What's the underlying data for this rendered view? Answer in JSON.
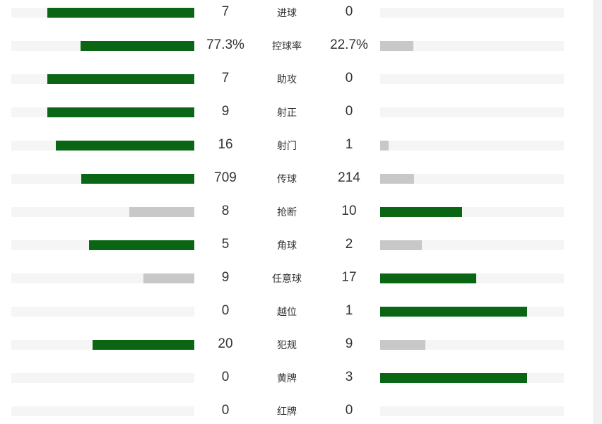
{
  "colors": {
    "leading": "#0a6614",
    "trailing": "#c8c8c8",
    "track": "#f5f5f5"
  },
  "stats": [
    {
      "label": "进球",
      "home": "7",
      "away": "0",
      "home_share": 1.0,
      "away_share": 0.0
    },
    {
      "label": "控球率",
      "home": "77.3%",
      "away": "22.7%",
      "home_share": 0.773,
      "away_share": 0.227
    },
    {
      "label": "助攻",
      "home": "7",
      "away": "0",
      "home_share": 1.0,
      "away_share": 0.0
    },
    {
      "label": "射正",
      "home": "9",
      "away": "0",
      "home_share": 1.0,
      "away_share": 0.0
    },
    {
      "label": "射门",
      "home": "16",
      "away": "1",
      "home_share": 0.941,
      "away_share": 0.059
    },
    {
      "label": "传球",
      "home": "709",
      "away": "214",
      "home_share": 0.768,
      "away_share": 0.232
    },
    {
      "label": "抢断",
      "home": "8",
      "away": "10",
      "home_share": 0.444,
      "away_share": 0.556
    },
    {
      "label": "角球",
      "home": "5",
      "away": "2",
      "home_share": 0.714,
      "away_share": 0.286
    },
    {
      "label": "任意球",
      "home": "9",
      "away": "17",
      "home_share": 0.346,
      "away_share": 0.654
    },
    {
      "label": "越位",
      "home": "0",
      "away": "1",
      "home_share": 0.0,
      "away_share": 1.0
    },
    {
      "label": "犯规",
      "home": "20",
      "away": "9",
      "home_share": 0.69,
      "away_share": 0.31
    },
    {
      "label": "黄牌",
      "home": "0",
      "away": "3",
      "home_share": 0.0,
      "away_share": 1.0
    },
    {
      "label": "红牌",
      "home": "0",
      "away": "0",
      "home_share": 0.0,
      "away_share": 0.0
    }
  ]
}
